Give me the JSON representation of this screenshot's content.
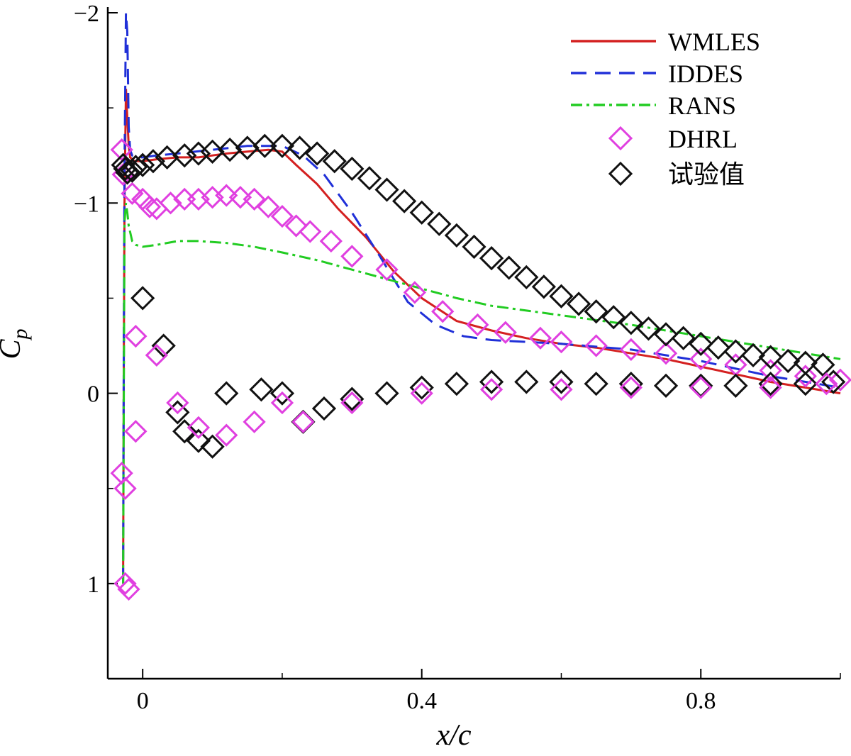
{
  "chart_data": {
    "type": "line",
    "title": "",
    "xlabel": "x/c",
    "ylabel": "C_p",
    "ylabel_main": "C",
    "ylabel_sub": "p",
    "xlim": [
      -0.05,
      1.0
    ],
    "ylim": [
      1.5,
      -2.0
    ],
    "y_inverted": true,
    "grid": false,
    "legend_position": "top-right",
    "x_ticks": [
      {
        "value": 0,
        "label": "0"
      },
      {
        "value": 0.4,
        "label": "0.4"
      },
      {
        "value": 0.8,
        "label": "0.8"
      }
    ],
    "y_ticks": [
      {
        "value": -2,
        "label": "−2"
      },
      {
        "value": -1,
        "label": "−1"
      },
      {
        "value": 0,
        "label": "0"
      },
      {
        "value": 1,
        "label": "1"
      }
    ],
    "series": [
      {
        "name": "WMLES",
        "style": "solid",
        "color": "#d42020",
        "x": [
          -0.028,
          -0.027,
          -0.026,
          -0.024,
          -0.022,
          -0.02,
          -0.018,
          -0.015,
          -0.012,
          -0.008,
          0.0,
          0.02,
          0.05,
          0.08,
          0.1,
          0.12,
          0.15,
          0.18,
          0.2,
          0.22,
          0.25,
          0.28,
          0.32,
          0.36,
          0.4,
          0.45,
          0.5,
          0.55,
          0.6,
          0.65,
          0.7,
          0.75,
          0.8,
          0.85,
          0.9,
          0.95,
          1.0
        ],
        "y": [
          1.0,
          -0.2,
          -1.0,
          -1.6,
          -1.45,
          -1.3,
          -1.24,
          -1.23,
          -1.22,
          -1.22,
          -1.22,
          -1.23,
          -1.24,
          -1.24,
          -1.25,
          -1.26,
          -1.27,
          -1.28,
          -1.27,
          -1.2,
          -1.1,
          -0.97,
          -0.82,
          -0.64,
          -0.5,
          -0.38,
          -0.33,
          -0.29,
          -0.26,
          -0.24,
          -0.21,
          -0.18,
          -0.14,
          -0.1,
          -0.06,
          -0.03,
          0.0
        ]
      },
      {
        "name": "IDDES",
        "style": "dashed",
        "color": "#2030d8",
        "x": [
          -0.028,
          -0.027,
          -0.026,
          -0.024,
          -0.022,
          -0.02,
          -0.018,
          -0.015,
          -0.01,
          0.0,
          0.02,
          0.05,
          0.1,
          0.15,
          0.18,
          0.2,
          0.23,
          0.26,
          0.3,
          0.34,
          0.38,
          0.42,
          0.46,
          0.5,
          0.55,
          0.6,
          0.7,
          0.8,
          0.9,
          1.0
        ],
        "y": [
          1.0,
          -0.3,
          -1.2,
          -2.0,
          -1.9,
          -1.4,
          -1.28,
          -1.25,
          -1.24,
          -1.24,
          -1.25,
          -1.26,
          -1.28,
          -1.3,
          -1.3,
          -1.3,
          -1.25,
          -1.15,
          -0.95,
          -0.72,
          -0.48,
          -0.36,
          -0.3,
          -0.28,
          -0.27,
          -0.26,
          -0.23,
          -0.17,
          -0.09,
          -0.03
        ]
      },
      {
        "name": "RANS",
        "style": "dashdot",
        "color": "#22cc22",
        "x": [
          -0.028,
          -0.027,
          -0.026,
          -0.024,
          -0.022,
          -0.02,
          -0.015,
          -0.01,
          0.0,
          0.02,
          0.05,
          0.08,
          0.12,
          0.16,
          0.2,
          0.25,
          0.3,
          0.35,
          0.4,
          0.45,
          0.5,
          0.6,
          0.7,
          0.8,
          0.9,
          1.0
        ],
        "y": [
          1.0,
          0.0,
          -0.9,
          -1.0,
          -0.95,
          -0.88,
          -0.8,
          -0.78,
          -0.77,
          -0.78,
          -0.8,
          -0.8,
          -0.79,
          -0.77,
          -0.74,
          -0.7,
          -0.65,
          -0.6,
          -0.55,
          -0.5,
          -0.46,
          -0.41,
          -0.36,
          -0.3,
          -0.24,
          -0.18
        ]
      },
      {
        "name": "DHRL",
        "style": "diamond",
        "color": "#e040e0",
        "x": [
          -0.03,
          -0.028,
          -0.025,
          -0.02,
          -0.015,
          -0.01,
          0.0,
          0.01,
          0.02,
          0.04,
          0.06,
          0.08,
          0.1,
          0.12,
          0.14,
          0.16,
          0.18,
          0.2,
          0.22,
          0.24,
          0.27,
          0.3,
          0.35,
          0.39,
          0.43,
          0.48,
          0.52,
          0.57,
          0.6,
          0.65,
          0.7,
          0.75,
          0.8,
          0.85,
          0.9,
          0.95,
          1.0
        ],
        "y": [
          -1.28,
          -1.15,
          1.0,
          1.03,
          -1.05,
          -0.3,
          -1.02,
          -0.98,
          -0.97,
          -1.0,
          -1.02,
          -1.02,
          -1.03,
          -1.04,
          -1.03,
          -1.02,
          -0.98,
          -0.93,
          -0.88,
          -0.85,
          -0.8,
          -0.72,
          -0.65,
          -0.53,
          -0.43,
          -0.36,
          -0.32,
          -0.29,
          -0.27,
          -0.25,
          -0.23,
          -0.21,
          -0.18,
          -0.15,
          -0.12,
          -0.09,
          -0.07
        ]
      },
      {
        "name": "试验值",
        "style": "diamond",
        "color": "#111111",
        "x": [
          -0.028,
          -0.025,
          -0.022,
          -0.015,
          -0.01,
          0.0,
          0.015,
          0.035,
          0.06,
          0.08,
          0.1,
          0.125,
          0.15,
          0.175,
          0.2,
          0.225,
          0.25,
          0.275,
          0.3,
          0.325,
          0.35,
          0.375,
          0.4,
          0.425,
          0.45,
          0.475,
          0.5,
          0.525,
          0.55,
          0.575,
          0.6,
          0.625,
          0.65,
          0.675,
          0.7,
          0.725,
          0.75,
          0.775,
          0.8,
          0.825,
          0.85,
          0.875,
          0.9,
          0.925,
          0.95,
          0.975
        ],
        "y": [
          -1.2,
          -1.18,
          -1.16,
          -1.17,
          -1.19,
          -1.2,
          -1.22,
          -1.24,
          -1.25,
          -1.26,
          -1.27,
          -1.28,
          -1.29,
          -1.3,
          -1.3,
          -1.29,
          -1.26,
          -1.22,
          -1.18,
          -1.13,
          -1.07,
          -1.01,
          -0.95,
          -0.89,
          -0.83,
          -0.77,
          -0.71,
          -0.66,
          -0.61,
          -0.56,
          -0.51,
          -0.47,
          -0.43,
          -0.4,
          -0.37,
          -0.34,
          -0.31,
          -0.29,
          -0.26,
          -0.24,
          -0.22,
          -0.2,
          -0.19,
          -0.17,
          -0.16,
          -0.15
        ]
      }
    ],
    "lower_surface": {
      "experiment_x": [
        0.0,
        0.03,
        0.05,
        0.06,
        0.08,
        0.1,
        0.12,
        0.17,
        0.2,
        0.23,
        0.26,
        0.3,
        0.35,
        0.4,
        0.45,
        0.5,
        0.55,
        0.6,
        0.65,
        0.7,
        0.75,
        0.8,
        0.85,
        0.9,
        0.95,
        0.99
      ],
      "experiment_y": [
        -0.5,
        -0.25,
        0.1,
        0.2,
        0.25,
        0.28,
        0.0,
        -0.02,
        0.0,
        0.15,
        0.08,
        0.03,
        0.0,
        -0.03,
        -0.05,
        -0.06,
        -0.06,
        -0.06,
        -0.05,
        -0.05,
        -0.04,
        -0.04,
        -0.04,
        -0.05,
        -0.05,
        -0.06
      ],
      "dhrl_x": [
        -0.03,
        -0.025,
        -0.01,
        0.02,
        0.05,
        0.08,
        0.12,
        0.16,
        0.2,
        0.23,
        0.3,
        0.4,
        0.5,
        0.6,
        0.7,
        0.8,
        0.9,
        0.98
      ],
      "dhrl_y": [
        0.42,
        0.5,
        0.2,
        -0.2,
        0.05,
        0.18,
        0.22,
        0.15,
        0.05,
        0.15,
        0.05,
        0.0,
        -0.02,
        -0.02,
        -0.03,
        -0.03,
        -0.03,
        -0.05
      ]
    }
  }
}
